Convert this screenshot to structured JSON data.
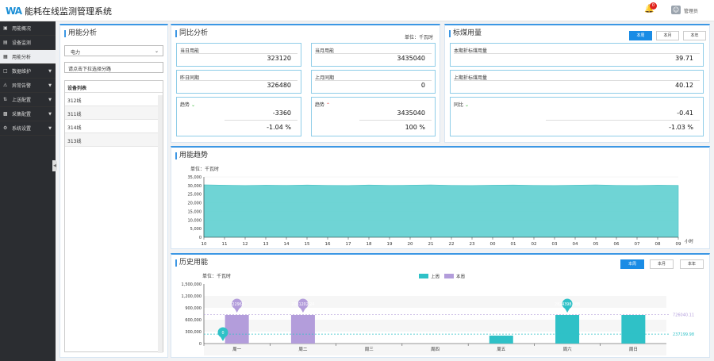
{
  "app": {
    "logo": "WA",
    "title": "能耗在线监测管理系统",
    "notification_count": "0",
    "user": "管理员"
  },
  "sidebar": {
    "items": [
      {
        "label": "用能概况",
        "arrow": false,
        "active": false
      },
      {
        "label": "设备监测",
        "arrow": false,
        "active": false
      },
      {
        "label": "用能分析",
        "arrow": false,
        "active": true
      },
      {
        "label": "数据维护",
        "arrow": true,
        "active": false
      },
      {
        "label": "异常告警",
        "arrow": true,
        "active": false
      },
      {
        "label": "上送配置",
        "arrow": true,
        "active": false
      },
      {
        "label": "采集配置",
        "arrow": true,
        "active": false
      },
      {
        "label": "系统设置",
        "arrow": true,
        "active": false
      }
    ]
  },
  "analysis": {
    "title": "用能分析",
    "select_value": "电力",
    "search_placeholder": "请点击下拉选择分路",
    "list_header": "设备列表",
    "items": [
      "312线",
      "311线",
      "314线",
      "313线"
    ]
  },
  "yoy": {
    "title": "同比分析",
    "unit": "单位：千瓦时",
    "today_label": "当日用能",
    "today_value": "323120",
    "month_label": "当月用能",
    "month_value": "3435040",
    "yesterday_label": "昨日同期",
    "yesterday_value": "326480",
    "lastmonth_label": "上月同期",
    "lastmonth_value": "0",
    "trend_label": "趋势",
    "trend_day_diff": "-3360",
    "trend_day_pct": "-1.04 %",
    "trend_month_diff": "3435040",
    "trend_month_pct": "100 %"
  },
  "coal": {
    "title": "标煤用量",
    "buttons": [
      "本周",
      "本月",
      "本年"
    ],
    "current_label": "本期折标煤用量",
    "current_value": "39.71",
    "last_label": "上期折标煤用量",
    "last_value": "40.12",
    "compare_label": "同比",
    "compare_diff": "-0.41",
    "compare_pct": "-1.03 %"
  },
  "trend": {
    "title": "用能趋势",
    "unit": "单位：千瓦时"
  },
  "history": {
    "title": "历史用能",
    "unit": "单位：千瓦时",
    "buttons": [
      "本周",
      "本月",
      "本年"
    ]
  },
  "colors": {
    "accent": "#1a8ce5",
    "area": "#5fcfd0",
    "last_week": "#2fc1c7",
    "this_week": "#b39ddb",
    "down": "#2eb82e",
    "up": "#e04040"
  },
  "chart_data": [
    {
      "type": "area",
      "title": "",
      "ylabel": "单位：千瓦时",
      "xlabel": "小时",
      "ylim": [
        0,
        35000
      ],
      "yticks": [
        "35,000",
        "30,000",
        "25,000",
        "20,000",
        "15,000",
        "10,000",
        "5,000",
        "0"
      ],
      "categories": [
        "10",
        "11",
        "12",
        "13",
        "14",
        "15",
        "16",
        "17",
        "18",
        "19",
        "20",
        "21",
        "22",
        "23",
        "00",
        "01",
        "02",
        "03",
        "04",
        "05",
        "06",
        "07",
        "08",
        "09"
      ],
      "values": [
        30400,
        30200,
        30000,
        30200,
        30100,
        30300,
        30100,
        30000,
        30300,
        30100,
        30200,
        30400,
        30100,
        30000,
        30200,
        30300,
        30100,
        30000,
        30200,
        30400,
        30100,
        30000,
        30200,
        30100
      ]
    },
    {
      "type": "bar",
      "ylabel": "单位：千瓦时",
      "ylim": [
        0,
        1500000
      ],
      "yticks": [
        "1,500,000",
        "1,200,000",
        "900,000",
        "600,000",
        "300,000",
        "0"
      ],
      "categories": [
        "周一",
        "周二",
        "周三",
        "周四",
        "周五",
        "周六",
        "周日"
      ],
      "legend": [
        "上周",
        "本周"
      ],
      "series": [
        {
          "name": "上周",
          "values": [
            0,
            0,
            0,
            0,
            200000,
            720000,
            720000
          ]
        },
        {
          "name": "本周",
          "values": [
            720000,
            720000,
            0,
            0,
            0,
            0,
            0
          ]
        }
      ],
      "pin_labels": [
        "0",
        "722968",
        "2081202.24",
        "2824398.888"
      ],
      "reference_lines": [
        {
          "value": 726040.11,
          "label": "726040.11",
          "series": "本周"
        },
        {
          "value": 237199.98,
          "label": "237199.98",
          "series": "上周"
        }
      ]
    }
  ]
}
